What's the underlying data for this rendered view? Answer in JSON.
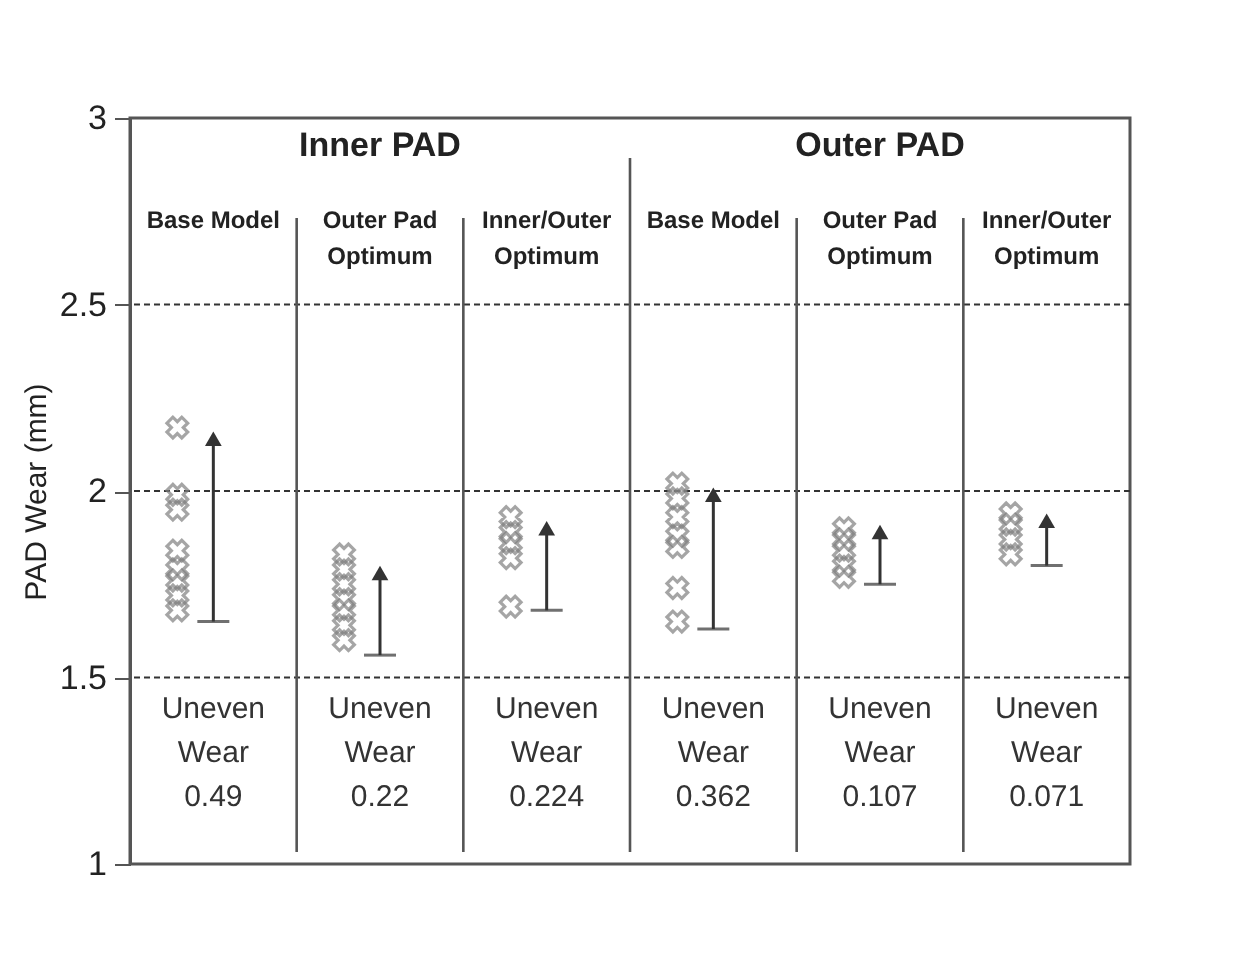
{
  "chart_data": {
    "type": "scatter",
    "ylabel": "PAD Wear (mm)",
    "categories": [
      "Base Model",
      "Outer Pad\nOptimum",
      "Inner/Outer\nOptimum",
      "Base Model",
      "Outer Pad\nOptimum",
      "Inner/Outer\nOptimum"
    ],
    "ylim": [
      1,
      3
    ],
    "yticks": [
      1,
      1.5,
      2,
      2.5,
      3
    ],
    "grid": "y",
    "marker": "cross",
    "annotations": [
      "Inner PAD",
      "Outer PAD",
      "Uneven\nWear\n0.49",
      "Uneven\nWear\n0.22",
      "Uneven\nWear\n0.224",
      "Uneven\nWear\n0.362",
      "Uneven\nWear\n0.107",
      "Uneven\nWear\n0.071"
    ],
    "series": [
      {
        "color": "#808080",
        "values": [
          2.17,
          1.83,
          1.93,
          2.02,
          1.9,
          1.94
        ]
      },
      {
        "color": "#808080",
        "values": [
          1.99,
          1.79,
          1.89,
          1.98,
          1.87,
          1.91
        ]
      },
      {
        "color": "#808080",
        "values": [
          1.95,
          1.75,
          1.86,
          1.93,
          1.84,
          1.87
        ]
      },
      {
        "color": "#808080",
        "values": [
          1.84,
          1.71,
          1.82,
          1.88,
          1.8,
          1.83
        ]
      },
      {
        "color": "#808080",
        "values": [
          1.79,
          1.68,
          1.69,
          1.85,
          1.77,
          null
        ]
      },
      {
        "color": "#808080",
        "values": [
          1.76,
          1.64,
          null,
          1.74,
          null,
          null
        ]
      },
      {
        "color": "#808080",
        "values": [
          1.72,
          1.6,
          null,
          1.65,
          null,
          null
        ]
      },
      {
        "color": "#808080",
        "values": [
          1.68,
          null,
          null,
          null,
          null,
          null
        ]
      },
      {
        "color": "#333333",
        "marker": "triangle",
        "values": [
          2.14,
          1.78,
          1.9,
          1.99,
          1.89,
          1.92
        ],
        "errors": [
          [
            1.65,
            2.14
          ],
          [
            1.56,
            1.78
          ],
          [
            1.68,
            1.9
          ],
          [
            1.63,
            1.99
          ],
          [
            1.75,
            1.89
          ],
          [
            1.8,
            1.92
          ]
        ]
      }
    ]
  }
}
